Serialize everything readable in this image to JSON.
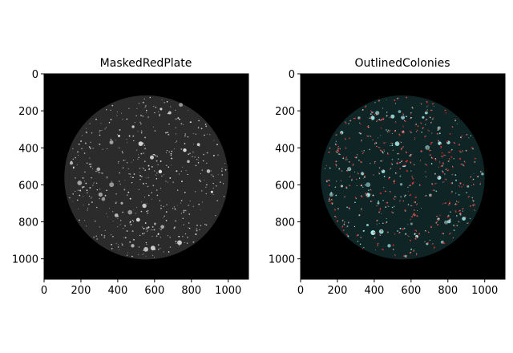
{
  "chart_data": [
    {
      "type": "image",
      "title": "MaskedRedPlate",
      "xlim": [
        0,
        1110
      ],
      "ylim": [
        1110,
        0
      ],
      "xticks": [
        0,
        200,
        400,
        600,
        800,
        1000
      ],
      "yticks": [
        0,
        200,
        400,
        600,
        800,
        1000
      ],
      "plate": {
        "center_x": 555,
        "center_y": 560,
        "radius": 445
      },
      "palette": {
        "background": "#000000",
        "plate": "#2b2b2b",
        "colony": "#e8e8e8"
      }
    },
    {
      "type": "image",
      "title": "OutlinedColonies",
      "xlim": [
        0,
        1110
      ],
      "ylim": [
        1110,
        0
      ],
      "xticks": [
        0,
        200,
        400,
        600,
        800,
        1000
      ],
      "yticks": [
        0,
        200,
        400,
        600,
        800,
        1000
      ],
      "plate": {
        "center_x": 555,
        "center_y": 560,
        "radius": 445
      },
      "palette": {
        "background": "#000000",
        "plate": "#0f2424",
        "colony": "#a8f0f0",
        "outline": "#e02020"
      }
    }
  ]
}
